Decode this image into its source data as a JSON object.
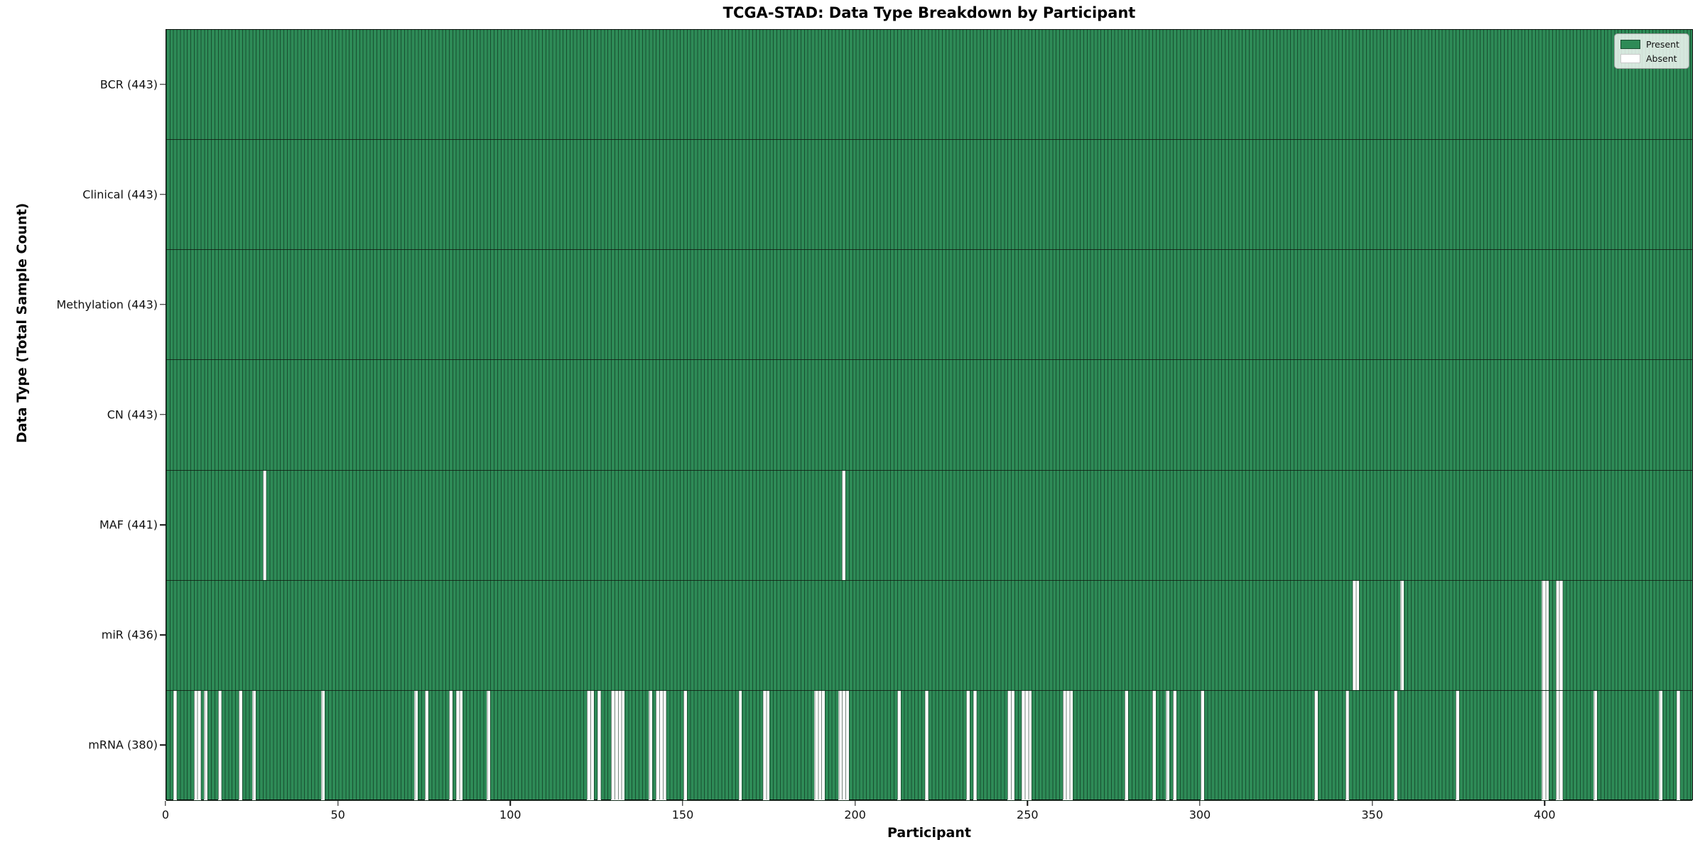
{
  "chart_data": {
    "type": "heatmap",
    "title": "TCGA-STAD: Data Type Breakdown by Participant",
    "xlabel": "Participant",
    "ylabel": "Data Type (Total Sample Count)",
    "n_participants": 443,
    "x_ticks": [
      0,
      50,
      100,
      150,
      200,
      250,
      300,
      350,
      400
    ],
    "x_range": [
      0,
      443
    ],
    "grid": false,
    "legend": [
      "Present",
      "Absent"
    ],
    "legend_position": "upper right",
    "colors": {
      "present": "#2e8b57",
      "absent": "#ffffff",
      "cell_edge": "rgba(5,30,16,0.55)",
      "row_divider": "#17301f",
      "plot_border": "#0d0d0d"
    },
    "rows": [
      {
        "name": "BCR",
        "total": 443,
        "label": "BCR (443)",
        "absent_participants": []
      },
      {
        "name": "Clinical",
        "total": 443,
        "label": "Clinical (443)",
        "absent_participants": []
      },
      {
        "name": "Methylation",
        "total": 443,
        "label": "Methylation (443)",
        "absent_participants": []
      },
      {
        "name": "CN",
        "total": 443,
        "label": "CN (443)",
        "absent_participants": []
      },
      {
        "name": "MAF",
        "total": 441,
        "label": "MAF (441)",
        "absent_participants": [
          28,
          196
        ]
      },
      {
        "name": "miR",
        "total": 436,
        "label": "miR (436)",
        "absent_participants": [
          344,
          345,
          358,
          399,
          400,
          403,
          404
        ]
      },
      {
        "name": "mRNA",
        "total": 380,
        "label": "mRNA (380)",
        "absent_participants": [
          2,
          8,
          9,
          11,
          15,
          21,
          25,
          45,
          72,
          75,
          82,
          84,
          85,
          93,
          122,
          123,
          125,
          129,
          130,
          131,
          132,
          140,
          142,
          143,
          144,
          150,
          166,
          173,
          174,
          188,
          189,
          190,
          195,
          196,
          197,
          212,
          220,
          232,
          234,
          244,
          245,
          248,
          249,
          250,
          260,
          261,
          262,
          278,
          286,
          290,
          292,
          300,
          333,
          342,
          356,
          374,
          399,
          400,
          403,
          404,
          414,
          433,
          438
        ]
      }
    ]
  }
}
